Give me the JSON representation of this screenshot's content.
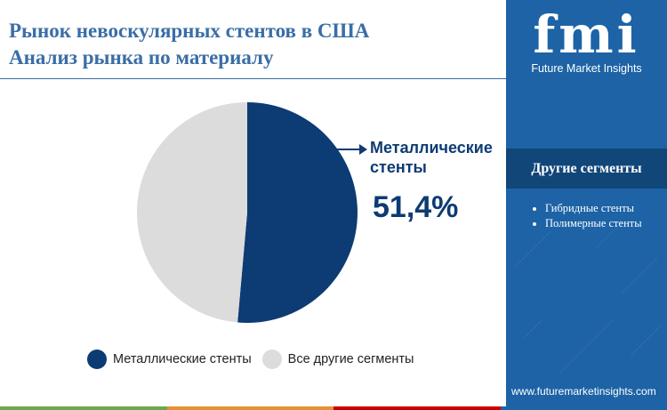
{
  "header": {
    "title_line1": "Рынок невоскулярных стентов в США",
    "title_line2": "Анализ рынка по материалу"
  },
  "chart_data": {
    "type": "pie",
    "title": "",
    "slices": [
      {
        "label": "Металлические стенты",
        "value": 51.4,
        "color": "#0d3b73"
      },
      {
        "label": "Все другие сегменты",
        "value": 48.6,
        "color": "#dcdcdc"
      }
    ],
    "callout": {
      "label": "Металлические стенты",
      "value_text": "51,4%"
    },
    "legend": [
      "Металлические стенты",
      "Все другие сегменты"
    ],
    "legend_position": "bottom"
  },
  "sidebar": {
    "logo_text": "fmi",
    "logo_subtitle": "Future Market Insights",
    "heading": "Другие сегменты",
    "items": [
      "Гибридные стенты",
      "Полимерные стенты"
    ],
    "url": "www.futuremarketinsights.com"
  },
  "colors": {
    "primary": "#0d3b73",
    "sidebar": "#1d63a6",
    "other": "#dcdcdc",
    "title": "#3a6ea5"
  }
}
